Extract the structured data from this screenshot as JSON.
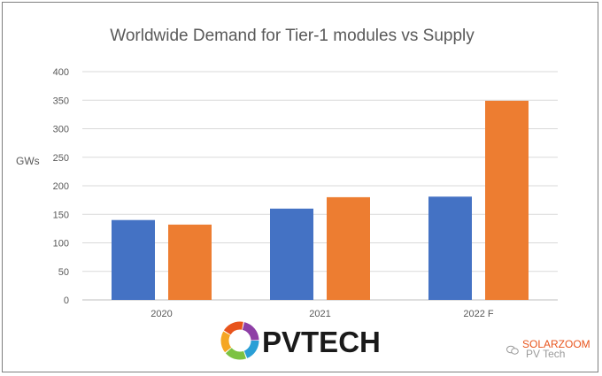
{
  "chart_data": {
    "type": "bar",
    "title": "Worldwide Demand for Tier-1 modules vs Supply",
    "ylabel": "GWs",
    "xlabel": "",
    "categories": [
      "2020",
      "2021",
      "2022 F"
    ],
    "series": [
      {
        "values": [
          140,
          160,
          181
        ],
        "color": "#4472c4"
      },
      {
        "values": [
          132,
          180,
          349
        ],
        "color": "#ed7d31"
      }
    ],
    "ylim": [
      0,
      400
    ],
    "yticks": [
      0,
      50,
      100,
      150,
      200,
      250,
      300,
      350,
      400
    ],
    "grid": true,
    "legend": "none"
  },
  "logo": {
    "brand": "PVTECH",
    "icon": "pvtech-ring-logo"
  },
  "watermark": {
    "primary": "SOLARZOOM",
    "secondary": "PV Tech",
    "icon": "wechat-icon"
  }
}
